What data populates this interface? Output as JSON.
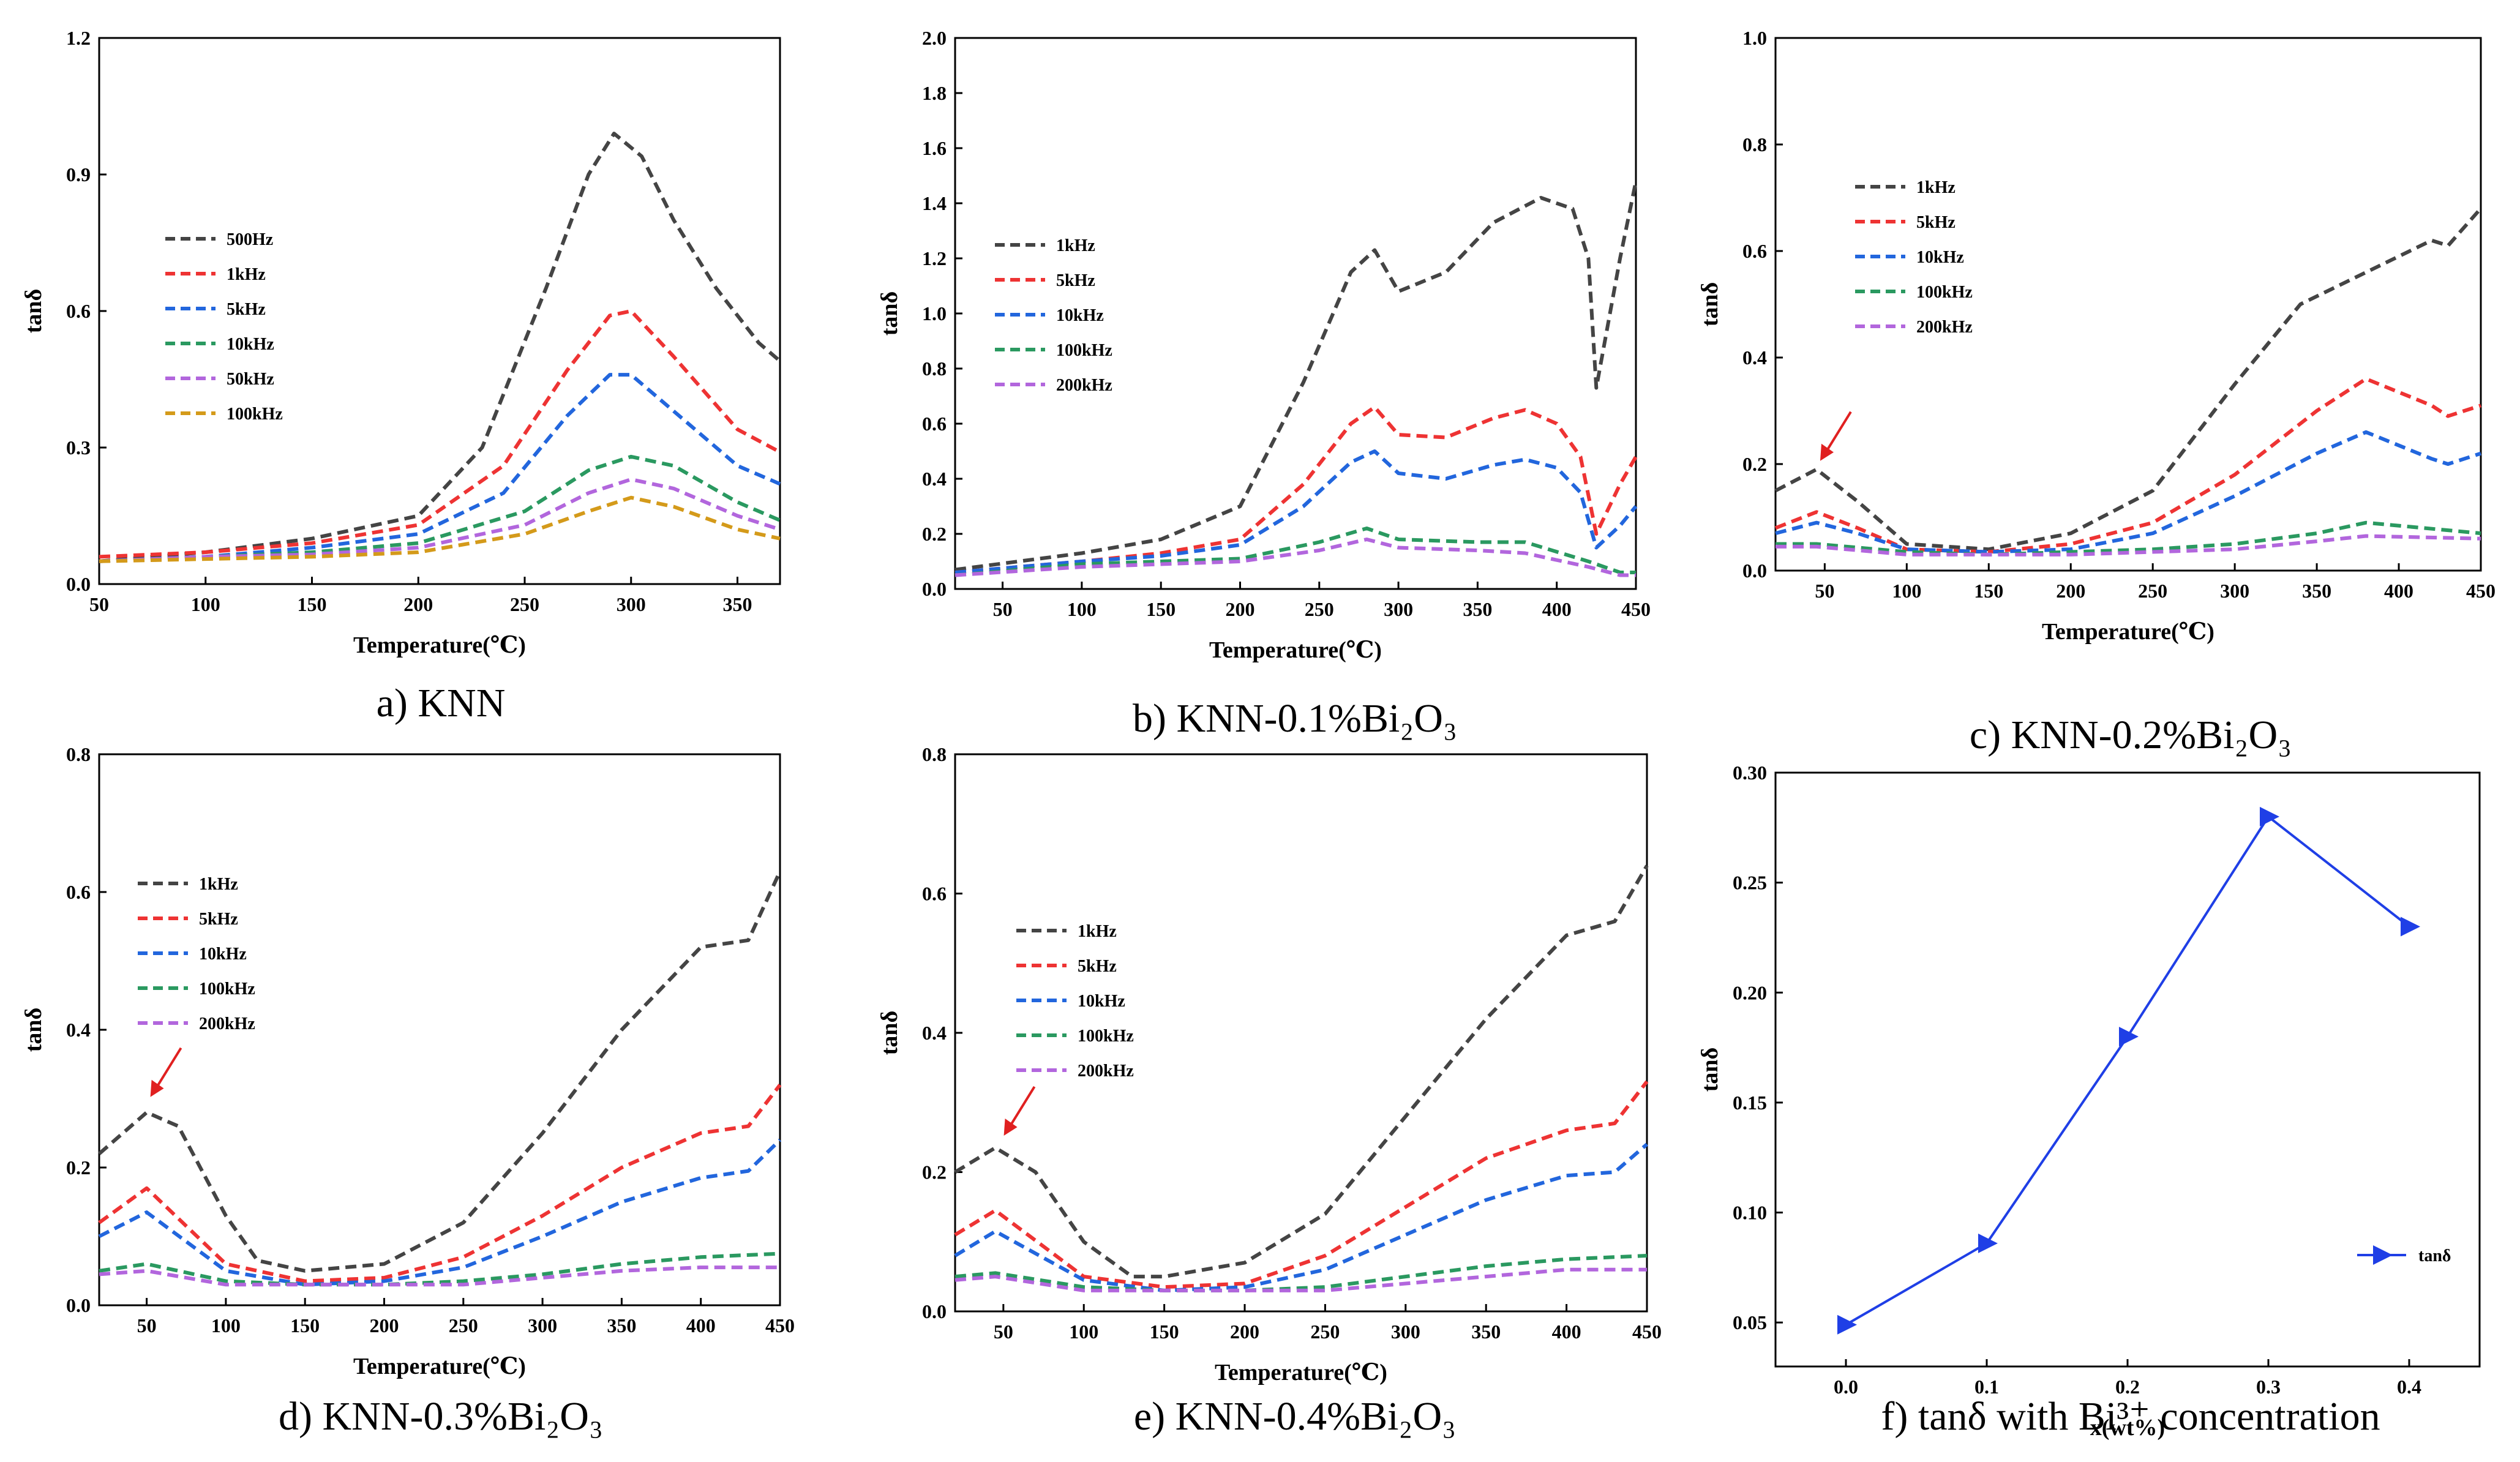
{
  "chart_data": [
    {
      "id": "a",
      "type": "line",
      "caption": "a) KNN",
      "xlabel": "Temperature(℃)",
      "ylabel": "tanδ",
      "xlim": [
        50,
        370
      ],
      "ylim": [
        0,
        1.2
      ],
      "xticks": [
        "50",
        "100",
        "150",
        "200",
        "250",
        "300",
        "350"
      ],
      "yticks": [
        "0.0",
        "0.3",
        "0.6",
        "0.9",
        "1.2"
      ],
      "legend_loc": "upper-left",
      "series": [
        {
          "name": "500Hz",
          "color": "#444444",
          "x": [
            50,
            100,
            150,
            200,
            230,
            260,
            280,
            292,
            305,
            320,
            340,
            360,
            370
          ],
          "y": [
            0.05,
            0.07,
            0.1,
            0.15,
            0.3,
            0.65,
            0.9,
            0.99,
            0.94,
            0.8,
            0.65,
            0.53,
            0.49
          ]
        },
        {
          "name": "1kHz",
          "color": "#ee3333",
          "x": [
            50,
            100,
            150,
            200,
            240,
            270,
            290,
            300,
            320,
            350,
            370
          ],
          "y": [
            0.06,
            0.07,
            0.09,
            0.13,
            0.26,
            0.47,
            0.59,
            0.6,
            0.5,
            0.34,
            0.29
          ]
        },
        {
          "name": "5kHz",
          "color": "#2266dd",
          "x": [
            50,
            100,
            150,
            200,
            240,
            270,
            290,
            300,
            320,
            350,
            370
          ],
          "y": [
            0.05,
            0.06,
            0.08,
            0.11,
            0.2,
            0.37,
            0.46,
            0.46,
            0.38,
            0.26,
            0.22
          ]
        },
        {
          "name": "10kHz",
          "color": "#2a9960",
          "x": [
            50,
            100,
            150,
            200,
            250,
            280,
            300,
            320,
            350,
            370
          ],
          "y": [
            0.05,
            0.06,
            0.07,
            0.09,
            0.16,
            0.25,
            0.28,
            0.26,
            0.18,
            0.14
          ]
        },
        {
          "name": "50kHz",
          "color": "#b266dd",
          "x": [
            50,
            100,
            150,
            200,
            250,
            280,
            300,
            320,
            350,
            370
          ],
          "y": [
            0.05,
            0.06,
            0.065,
            0.08,
            0.13,
            0.2,
            0.23,
            0.21,
            0.15,
            0.12
          ]
        },
        {
          "name": "100kHz",
          "color": "#d49a1a",
          "x": [
            50,
            100,
            150,
            200,
            250,
            280,
            300,
            320,
            350,
            370
          ],
          "y": [
            0.05,
            0.055,
            0.06,
            0.07,
            0.11,
            0.16,
            0.19,
            0.17,
            0.12,
            0.1
          ]
        }
      ]
    },
    {
      "id": "b",
      "type": "line",
      "caption": "b) KNN-0.1%Bi₂O₃",
      "xlabel": "Temperature(℃)",
      "ylabel": "tanδ",
      "xlim": [
        20,
        450
      ],
      "ylim": [
        0,
        2.0
      ],
      "xticks": [
        "50",
        "100",
        "150",
        "200",
        "250",
        "300",
        "350",
        "400",
        "450"
      ],
      "yticks": [
        "0.0",
        "0.2",
        "0.4",
        "0.6",
        "0.8",
        "1.0",
        "1.2",
        "1.4",
        "1.6",
        "1.8",
        "2.0"
      ],
      "legend_loc": "center-left",
      "series": [
        {
          "name": "1kHz",
          "color": "#444444",
          "x": [
            20,
            100,
            150,
            200,
            240,
            270,
            285,
            300,
            330,
            360,
            390,
            410,
            420,
            425,
            440,
            450
          ],
          "y": [
            0.07,
            0.13,
            0.18,
            0.3,
            0.75,
            1.15,
            1.23,
            1.08,
            1.15,
            1.33,
            1.42,
            1.38,
            1.2,
            0.73,
            1.2,
            1.48
          ]
        },
        {
          "name": "5kHz",
          "color": "#ee3333",
          "x": [
            20,
            100,
            150,
            200,
            240,
            270,
            285,
            300,
            330,
            360,
            380,
            400,
            415,
            425,
            440,
            450
          ],
          "y": [
            0.06,
            0.1,
            0.13,
            0.18,
            0.38,
            0.6,
            0.66,
            0.56,
            0.55,
            0.62,
            0.65,
            0.6,
            0.48,
            0.2,
            0.38,
            0.48
          ]
        },
        {
          "name": "10kHz",
          "color": "#2266dd",
          "x": [
            20,
            100,
            150,
            200,
            240,
            270,
            285,
            300,
            330,
            360,
            380,
            400,
            415,
            425,
            440,
            450
          ],
          "y": [
            0.06,
            0.1,
            0.12,
            0.16,
            0.3,
            0.46,
            0.5,
            0.42,
            0.4,
            0.45,
            0.47,
            0.44,
            0.35,
            0.15,
            0.23,
            0.3
          ]
        },
        {
          "name": "100kHz",
          "color": "#2a9960",
          "x": [
            20,
            100,
            150,
            200,
            250,
            280,
            300,
            350,
            380,
            420,
            440,
            450
          ],
          "y": [
            0.05,
            0.09,
            0.1,
            0.11,
            0.17,
            0.22,
            0.18,
            0.17,
            0.17,
            0.1,
            0.06,
            0.06
          ]
        },
        {
          "name": "200kHz",
          "color": "#b266dd",
          "x": [
            20,
            100,
            150,
            200,
            250,
            280,
            300,
            350,
            380,
            420,
            440,
            450
          ],
          "y": [
            0.05,
            0.08,
            0.09,
            0.1,
            0.14,
            0.18,
            0.15,
            0.14,
            0.13,
            0.08,
            0.05,
            0.05
          ]
        }
      ]
    },
    {
      "id": "c",
      "type": "line",
      "caption": "c) KNN-0.2%Bi₂O₃",
      "xlabel": "Temperature(℃)",
      "ylabel": "tanδ",
      "xlim": [
        20,
        450
      ],
      "ylim": [
        0,
        1.0
      ],
      "xticks": [
        "50",
        "100",
        "150",
        "200",
        "250",
        "300",
        "350",
        "400",
        "450"
      ],
      "yticks": [
        "0.0",
        "0.2",
        "0.4",
        "0.6",
        "0.8",
        "1.0"
      ],
      "legend_loc": "upper-left",
      "arrow_at": [
        45,
        0.19
      ],
      "series": [
        {
          "name": "1kHz",
          "color": "#444444",
          "x": [
            20,
            45,
            70,
            100,
            150,
            200,
            250,
            300,
            340,
            380,
            420,
            430,
            450
          ],
          "y": [
            0.15,
            0.19,
            0.13,
            0.05,
            0.04,
            0.07,
            0.15,
            0.35,
            0.5,
            0.56,
            0.62,
            0.61,
            0.68
          ]
        },
        {
          "name": "5kHz",
          "color": "#ee3333",
          "x": [
            20,
            45,
            70,
            100,
            150,
            200,
            250,
            300,
            350,
            380,
            420,
            430,
            450
          ],
          "y": [
            0.08,
            0.11,
            0.08,
            0.04,
            0.035,
            0.05,
            0.09,
            0.18,
            0.3,
            0.36,
            0.31,
            0.29,
            0.31
          ]
        },
        {
          "name": "10kHz",
          "color": "#2266dd",
          "x": [
            20,
            45,
            70,
            100,
            150,
            200,
            250,
            300,
            350,
            380,
            420,
            430,
            450
          ],
          "y": [
            0.07,
            0.09,
            0.07,
            0.04,
            0.035,
            0.04,
            0.07,
            0.14,
            0.22,
            0.26,
            0.21,
            0.2,
            0.22
          ]
        },
        {
          "name": "100kHz",
          "color": "#2a9960",
          "x": [
            20,
            45,
            100,
            150,
            200,
            250,
            300,
            350,
            380,
            450
          ],
          "y": [
            0.05,
            0.05,
            0.035,
            0.03,
            0.035,
            0.04,
            0.05,
            0.07,
            0.09,
            0.07
          ]
        },
        {
          "name": "200kHz",
          "color": "#b266dd",
          "x": [
            20,
            45,
            100,
            150,
            200,
            250,
            300,
            350,
            380,
            450
          ],
          "y": [
            0.045,
            0.045,
            0.03,
            0.03,
            0.03,
            0.035,
            0.04,
            0.055,
            0.065,
            0.06
          ]
        }
      ]
    },
    {
      "id": "d",
      "type": "line",
      "caption": "d) KNN-0.3%Bi₂O₃",
      "xlabel": "Temperature(℃)",
      "ylabel": "tanδ",
      "xlim": [
        20,
        450
      ],
      "ylim": [
        0,
        0.8
      ],
      "xticks": [
        "50",
        "100",
        "150",
        "200",
        "250",
        "300",
        "350",
        "400",
        "450"
      ],
      "yticks": [
        "0.0",
        "0.2",
        "0.4",
        "0.6",
        "0.8"
      ],
      "legend_loc": "upper-left",
      "arrow_at": [
        50,
        0.29
      ],
      "series": [
        {
          "name": "1kHz",
          "color": "#444444",
          "x": [
            20,
            50,
            70,
            100,
            120,
            150,
            200,
            250,
            300,
            350,
            400,
            430,
            450
          ],
          "y": [
            0.22,
            0.28,
            0.26,
            0.13,
            0.065,
            0.05,
            0.06,
            0.12,
            0.25,
            0.4,
            0.52,
            0.53,
            0.63
          ]
        },
        {
          "name": "5kHz",
          "color": "#ee3333",
          "x": [
            20,
            50,
            100,
            150,
            200,
            250,
            300,
            350,
            400,
            430,
            450
          ],
          "y": [
            0.12,
            0.17,
            0.06,
            0.035,
            0.04,
            0.07,
            0.13,
            0.2,
            0.25,
            0.26,
            0.32
          ]
        },
        {
          "name": "10kHz",
          "color": "#2266dd",
          "x": [
            20,
            50,
            100,
            150,
            200,
            250,
            300,
            350,
            400,
            430,
            450
          ],
          "y": [
            0.1,
            0.135,
            0.05,
            0.03,
            0.035,
            0.055,
            0.1,
            0.15,
            0.185,
            0.195,
            0.24
          ]
        },
        {
          "name": "100kHz",
          "color": "#2a9960",
          "x": [
            20,
            50,
            100,
            150,
            200,
            250,
            300,
            350,
            400,
            450
          ],
          "y": [
            0.05,
            0.06,
            0.035,
            0.03,
            0.03,
            0.035,
            0.045,
            0.06,
            0.07,
            0.075
          ]
        },
        {
          "name": "200kHz",
          "color": "#b266dd",
          "x": [
            20,
            50,
            100,
            150,
            200,
            250,
            300,
            350,
            400,
            450
          ],
          "y": [
            0.045,
            0.05,
            0.03,
            0.03,
            0.03,
            0.03,
            0.04,
            0.05,
            0.055,
            0.055
          ]
        }
      ]
    },
    {
      "id": "e",
      "type": "line",
      "caption": "e) KNN-0.4%Bi₂O₃",
      "xlabel": "Temperature(℃)",
      "ylabel": "tanδ",
      "xlim": [
        20,
        450
      ],
      "ylim": [
        0,
        0.8
      ],
      "xticks": [
        "50",
        "100",
        "150",
        "200",
        "250",
        "300",
        "350",
        "400",
        "450"
      ],
      "yticks": [
        "0.0",
        "0.2",
        "0.4",
        "0.6",
        "0.8"
      ],
      "legend_loc": "upper-left",
      "arrow_at": [
        48,
        0.24
      ],
      "series": [
        {
          "name": "1kHz",
          "color": "#444444",
          "x": [
            20,
            45,
            70,
            100,
            130,
            150,
            200,
            250,
            300,
            350,
            400,
            430,
            450
          ],
          "y": [
            0.2,
            0.235,
            0.2,
            0.1,
            0.05,
            0.05,
            0.07,
            0.14,
            0.28,
            0.42,
            0.54,
            0.56,
            0.64
          ]
        },
        {
          "name": "5kHz",
          "color": "#ee3333",
          "x": [
            20,
            45,
            100,
            150,
            200,
            250,
            300,
            350,
            400,
            430,
            450
          ],
          "y": [
            0.11,
            0.145,
            0.05,
            0.035,
            0.04,
            0.08,
            0.15,
            0.22,
            0.26,
            0.27,
            0.33
          ]
        },
        {
          "name": "10kHz",
          "color": "#2266dd",
          "x": [
            20,
            45,
            100,
            150,
            200,
            250,
            300,
            350,
            400,
            430,
            450
          ],
          "y": [
            0.08,
            0.115,
            0.045,
            0.03,
            0.035,
            0.06,
            0.11,
            0.16,
            0.195,
            0.2,
            0.24
          ]
        },
        {
          "name": "100kHz",
          "color": "#2a9960",
          "x": [
            20,
            45,
            100,
            150,
            200,
            250,
            300,
            350,
            400,
            450
          ],
          "y": [
            0.05,
            0.055,
            0.035,
            0.03,
            0.03,
            0.035,
            0.05,
            0.065,
            0.075,
            0.08
          ]
        },
        {
          "name": "200kHz",
          "color": "#b266dd",
          "x": [
            20,
            45,
            100,
            150,
            200,
            250,
            300,
            350,
            400,
            450
          ],
          "y": [
            0.045,
            0.05,
            0.03,
            0.03,
            0.03,
            0.03,
            0.04,
            0.05,
            0.06,
            0.06
          ]
        }
      ]
    },
    {
      "id": "f",
      "type": "line",
      "caption": "f) tanδ with Bi³⁺ concentration",
      "xlabel": "x(wt%)",
      "ylabel": "tanδ",
      "xlim": [
        -0.05,
        0.45
      ],
      "ylim": [
        0.03,
        0.3
      ],
      "xticks": [
        "0.0",
        "0.1",
        "0.2",
        "0.3",
        "0.4"
      ],
      "yticks": [
        "0.05",
        "0.10",
        "0.15",
        "0.20",
        "0.25",
        "0.30"
      ],
      "legend_loc": "lower-right",
      "series": [
        {
          "name": "tanδ",
          "color": "#1f3fe6",
          "marker": "triangle-right",
          "x": [
            0.0,
            0.1,
            0.2,
            0.3,
            0.4
          ],
          "y": [
            0.049,
            0.086,
            0.18,
            0.28,
            0.23
          ]
        }
      ]
    }
  ]
}
